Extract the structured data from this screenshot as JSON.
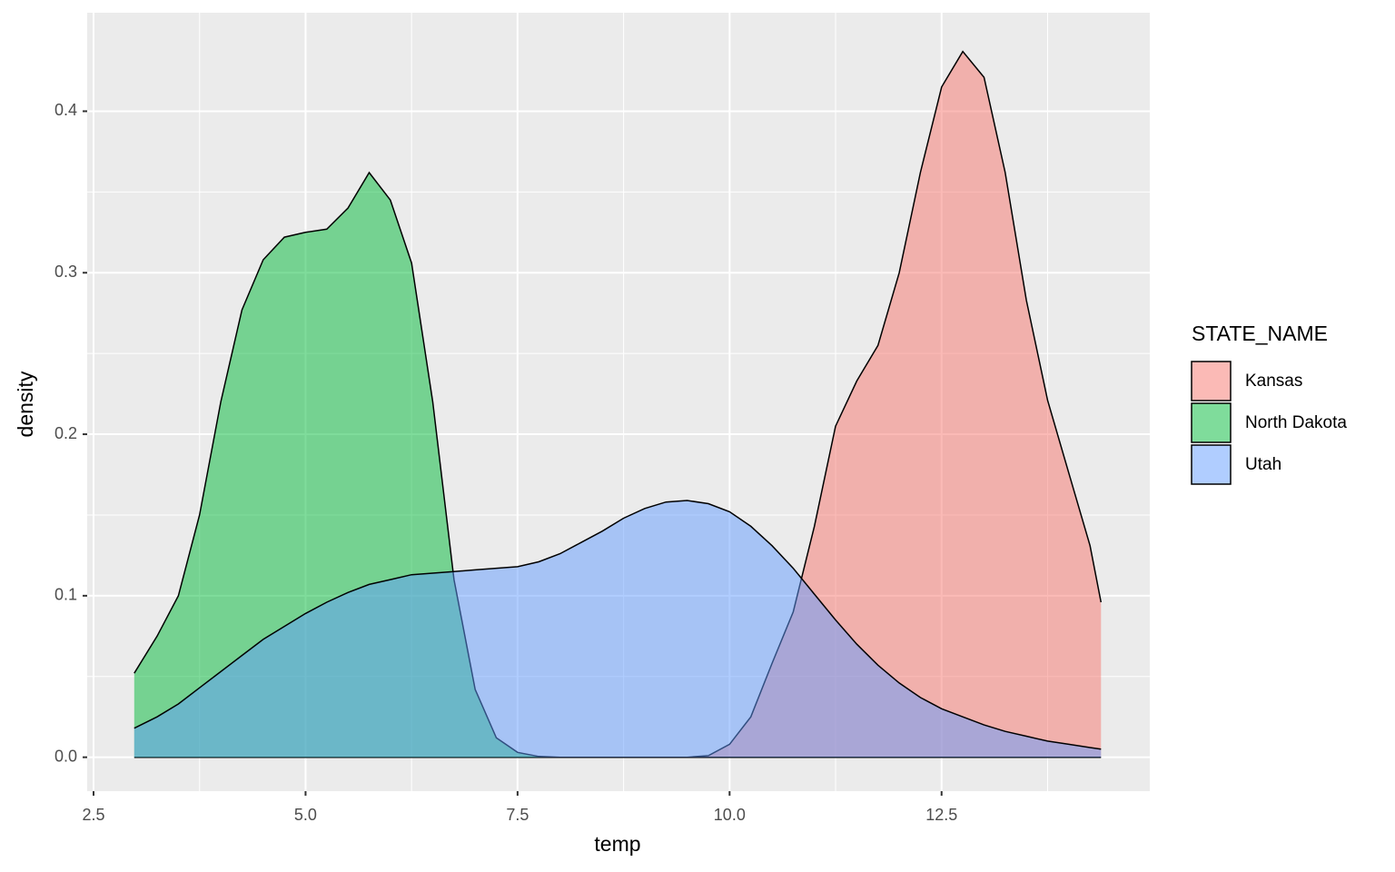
{
  "chart_data": {
    "type": "density",
    "x_label": "temp",
    "y_label": "density",
    "legend_title": "STATE_NAME",
    "x": [
      2.98,
      3.25,
      3.5,
      3.75,
      4,
      4.25,
      4.5,
      4.75,
      5,
      5.25,
      5.5,
      5.75,
      6,
      6.25,
      6.5,
      6.75,
      7,
      7.25,
      7.5,
      7.75,
      8,
      8.25,
      8.5,
      8.75,
      9,
      9.25,
      9.5,
      9.75,
      10,
      10.25,
      10.5,
      10.75,
      11,
      11.25,
      11.5,
      11.75,
      12,
      12.25,
      12.5,
      12.75,
      13,
      13.25,
      13.5,
      13.75,
      14,
      14.25,
      14.38
    ],
    "series": [
      {
        "name": "Kansas",
        "color": "#F8766D",
        "values": [
          0,
          0,
          0,
          0,
          0,
          0,
          0,
          0,
          0,
          0,
          0,
          0,
          0,
          0,
          0,
          0,
          0,
          0,
          0,
          0,
          0,
          0,
          0,
          0,
          0,
          0,
          0,
          0.001,
          0.008,
          0.025,
          0.058,
          0.09,
          0.143,
          0.205,
          0.233,
          0.255,
          0.3,
          0.362,
          0.415,
          0.437,
          0.421,
          0.362,
          0.283,
          0.221,
          0.176,
          0.131,
          0.096
        ]
      },
      {
        "name": "North Dakota",
        "color": "#00BA38",
        "values": [
          0.052,
          0.075,
          0.1,
          0.15,
          0.22,
          0.277,
          0.308,
          0.322,
          0.325,
          0.327,
          0.34,
          0.362,
          0.345,
          0.306,
          0.22,
          0.11,
          0.042,
          0.012,
          0.003,
          0.0005,
          0,
          0,
          0,
          0,
          0,
          0,
          0,
          0,
          0,
          0,
          0,
          0,
          0,
          0,
          0,
          0,
          0,
          0,
          0,
          0,
          0,
          0,
          0,
          0,
          0,
          0,
          0
        ]
      },
      {
        "name": "Utah",
        "color": "#619CFF",
        "values": [
          0.018,
          0.025,
          0.033,
          0.043,
          0.053,
          0.063,
          0.073,
          0.081,
          0.089,
          0.096,
          0.102,
          0.107,
          0.11,
          0.113,
          0.114,
          0.115,
          0.116,
          0.117,
          0.118,
          0.121,
          0.126,
          0.133,
          0.14,
          0.148,
          0.154,
          0.158,
          0.159,
          0.157,
          0.152,
          0.143,
          0.131,
          0.117,
          0.101,
          0.085,
          0.07,
          0.057,
          0.046,
          0.037,
          0.03,
          0.025,
          0.02,
          0.016,
          0.013,
          0.01,
          0.008,
          0.006,
          0.005
        ]
      }
    ],
    "xlim": [
      2.425,
      14.955
    ],
    "ylim": [
      -0.021,
      0.461
    ],
    "xticks": [
      2.5,
      {
        "value": 5,
        "label": "5.0"
      },
      7.5,
      {
        "value": 10,
        "label": "10.0"
      },
      12.5
    ],
    "yticks": [
      {
        "value": 0,
        "label": "0.0"
      },
      0.1,
      0.2,
      0.3,
      0.4
    ],
    "xminorticks": [
      3.75,
      6.25,
      8.75,
      11.25,
      13.75
    ],
    "yminorticks": [
      0.05,
      0.15,
      0.25,
      0.35
    ],
    "grid": true,
    "fill_opacity": 0.5,
    "legend_position": "right"
  }
}
